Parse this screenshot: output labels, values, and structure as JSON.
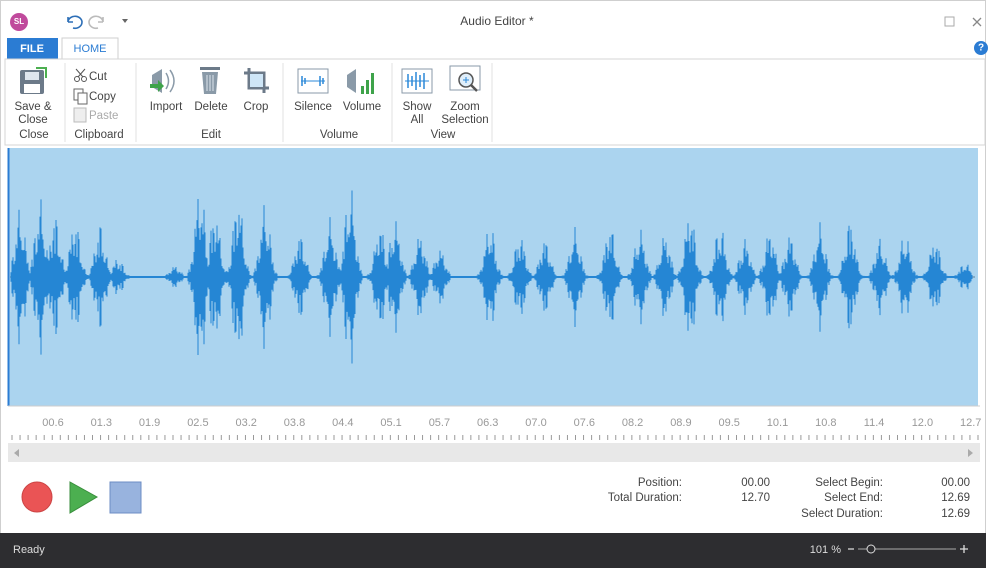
{
  "title_bar": {
    "app_icon": "SL",
    "title": "Audio Editor *"
  },
  "tabs": [
    "FILE",
    "HOME"
  ],
  "ribbon": {
    "groups": [
      {
        "label": "Close",
        "buttons": [
          {
            "lines": [
              "Save &",
              "Close"
            ]
          }
        ]
      },
      {
        "label": "Clipboard",
        "buttons": [
          {
            "lines": [
              "Cut"
            ]
          },
          {
            "lines": [
              "Copy"
            ]
          },
          {
            "lines": [
              "Paste"
            ]
          }
        ]
      },
      {
        "label": "Edit",
        "buttons": [
          {
            "lines": [
              "Import"
            ]
          },
          {
            "lines": [
              "Delete"
            ]
          },
          {
            "lines": [
              "Crop"
            ]
          }
        ]
      },
      {
        "label": "Volume",
        "buttons": [
          {
            "lines": [
              "Silence"
            ]
          },
          {
            "lines": [
              "Volume"
            ]
          }
        ]
      },
      {
        "label": "View",
        "buttons": [
          {
            "lines": [
              "Show",
              "All"
            ]
          },
          {
            "lines": [
              "Zoom",
              "Selection"
            ]
          }
        ]
      }
    ]
  },
  "timeline": {
    "labels": [
      "00.6",
      "01.3",
      "01.9",
      "02.5",
      "03.2",
      "03.8",
      "04.4",
      "05.1",
      "05.7",
      "06.3",
      "07.0",
      "07.6",
      "08.2",
      "08.9",
      "09.5",
      "10.1",
      "10.8",
      "11.4",
      "12.0",
      "12.7"
    ]
  },
  "info": {
    "position": {
      "label": "Position:",
      "value": "00.00"
    },
    "total_duration": {
      "label": "Total Duration:",
      "value": "12.70"
    },
    "select_begin": {
      "label": "Select Begin:",
      "value": "00.00"
    },
    "select_end": {
      "label": "Select End:",
      "value": "12.69"
    },
    "select_duration": {
      "label": "Select Duration:",
      "value": "12.69"
    }
  },
  "status_bar": {
    "text": "Ready",
    "zoom": "101 %"
  }
}
